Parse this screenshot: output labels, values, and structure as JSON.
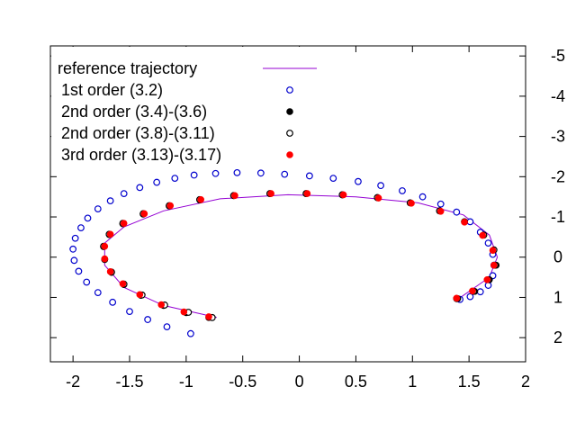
{
  "chart_data": {
    "type": "scatter",
    "title": "",
    "xlabel": "",
    "ylabel": "",
    "xlim": [
      -2.2,
      2.0
    ],
    "ylim": [
      2.6,
      -5.25
    ],
    "x_ticks": [
      "-2",
      "-1.5",
      "-1",
      "-0.5",
      "0",
      "0.5",
      "1",
      "1.5",
      "2"
    ],
    "x_tick_values": [
      -2,
      -1.5,
      -1,
      -0.5,
      0,
      0.5,
      1,
      1.5,
      2
    ],
    "y_ticks": [
      "-5",
      "-4",
      "-3",
      "-2",
      "-1",
      "0",
      "1",
      "2"
    ],
    "y_tick_values": [
      -5,
      -4,
      -3,
      -2,
      -1,
      0,
      1,
      2
    ],
    "y_axis_side": "right",
    "grid": false,
    "legend_position": "top-left",
    "series": [
      {
        "name": "reference trajectory",
        "style": "line",
        "color": "#9400d3",
        "x": [
          -0.73,
          -1.2,
          -1.55,
          -1.72,
          -1.72,
          -1.55,
          -1.2,
          -0.7,
          -0.1,
          0.5,
          1.05,
          1.45,
          1.68,
          1.75,
          1.68,
          1.45,
          1.4
        ],
        "y": [
          1.5,
          1.2,
          0.75,
          0.2,
          -0.35,
          -0.75,
          -1.15,
          -1.45,
          -1.55,
          -1.5,
          -1.35,
          -1.05,
          -0.55,
          0.0,
          0.5,
          0.95,
          1.05
        ]
      },
      {
        "name": "1st order (3.2)",
        "style": "open-circle",
        "color": "#0000cd",
        "x": [
          -0.96,
          -1.17,
          -1.34,
          -1.5,
          -1.65,
          -1.78,
          -1.88,
          -1.95,
          -1.99,
          -2.0,
          -1.98,
          -1.93,
          -1.87,
          -1.78,
          -1.67,
          -1.55,
          -1.41,
          -1.26,
          -1.1,
          -0.93,
          -0.74,
          -0.55,
          -0.34,
          -0.13,
          0.09,
          0.3,
          0.52,
          0.72,
          0.91,
          1.09,
          1.25,
          1.39,
          1.51,
          1.6,
          1.67,
          1.71,
          1.72,
          1.71,
          1.67,
          1.6,
          1.51,
          1.42
        ],
        "y": [
          1.9,
          1.73,
          1.55,
          1.35,
          1.12,
          0.88,
          0.62,
          0.35,
          0.08,
          -0.2,
          -0.47,
          -0.73,
          -0.97,
          -1.2,
          -1.4,
          -1.58,
          -1.73,
          -1.86,
          -1.96,
          -2.04,
          -2.08,
          -2.1,
          -2.09,
          -2.06,
          -2.02,
          -1.96,
          -1.88,
          -1.78,
          -1.65,
          -1.5,
          -1.32,
          -1.12,
          -0.88,
          -0.62,
          -0.35,
          -0.07,
          0.2,
          0.46,
          0.7,
          0.86,
          0.98,
          1.05
        ]
      },
      {
        "name": "2nd order (3.4)-(3.6)",
        "style": "filled-circle",
        "color": "#000000",
        "x": [
          -0.8,
          -1.0,
          -1.2,
          -1.4,
          -1.55,
          -1.66,
          -1.72,
          -1.73,
          -1.68,
          -1.56,
          -1.38,
          -1.15,
          -0.88,
          -0.58,
          -0.26,
          0.06,
          0.38,
          0.69,
          0.98,
          1.24,
          1.46,
          1.63,
          1.72,
          1.74,
          1.68,
          1.55,
          1.4
        ],
        "y": [
          1.5,
          1.38,
          1.2,
          0.95,
          0.68,
          0.38,
          0.06,
          -0.26,
          -0.56,
          -0.83,
          -1.07,
          -1.27,
          -1.42,
          -1.53,
          -1.58,
          -1.58,
          -1.55,
          -1.48,
          -1.35,
          -1.15,
          -0.88,
          -0.55,
          -0.18,
          0.2,
          0.56,
          0.85,
          1.03
        ]
      },
      {
        "name": "2nd order (3.8)-(3.11)",
        "style": "open-circle",
        "color": "#000000",
        "x": [
          -0.77,
          -0.98,
          -1.19,
          -1.39,
          -1.55,
          -1.66,
          -1.72,
          -1.73,
          -1.68,
          -1.56,
          -1.38,
          -1.15,
          -0.88,
          -0.58,
          -0.26,
          0.06,
          0.38,
          0.69,
          0.98,
          1.24,
          1.46,
          1.63,
          1.72,
          1.73,
          1.67,
          1.54,
          1.39
        ],
        "y": [
          1.5,
          1.37,
          1.19,
          0.94,
          0.67,
          0.37,
          0.05,
          -0.27,
          -0.57,
          -0.84,
          -1.08,
          -1.28,
          -1.43,
          -1.53,
          -1.58,
          -1.58,
          -1.55,
          -1.48,
          -1.35,
          -1.15,
          -0.88,
          -0.55,
          -0.18,
          0.2,
          0.56,
          0.85,
          1.03
        ]
      },
      {
        "name": "3rd order (3.13)-(3.17)",
        "style": "filled-circle",
        "color": "#ff0000",
        "x": [
          -0.8,
          -1.02,
          -1.22,
          -1.41,
          -1.56,
          -1.67,
          -1.72,
          -1.72,
          -1.67,
          -1.55,
          -1.37,
          -1.14,
          -0.87,
          -0.57,
          -0.25,
          0.07,
          0.39,
          0.7,
          0.99,
          1.25,
          1.46,
          1.62,
          1.71,
          1.72,
          1.66,
          1.53,
          1.39
        ],
        "y": [
          1.48,
          1.36,
          1.18,
          0.93,
          0.66,
          0.36,
          0.04,
          -0.27,
          -0.57,
          -0.84,
          -1.08,
          -1.28,
          -1.43,
          -1.53,
          -1.58,
          -1.58,
          -1.55,
          -1.47,
          -1.34,
          -1.14,
          -0.87,
          -0.54,
          -0.17,
          0.2,
          0.56,
          0.84,
          1.02
        ]
      }
    ]
  }
}
